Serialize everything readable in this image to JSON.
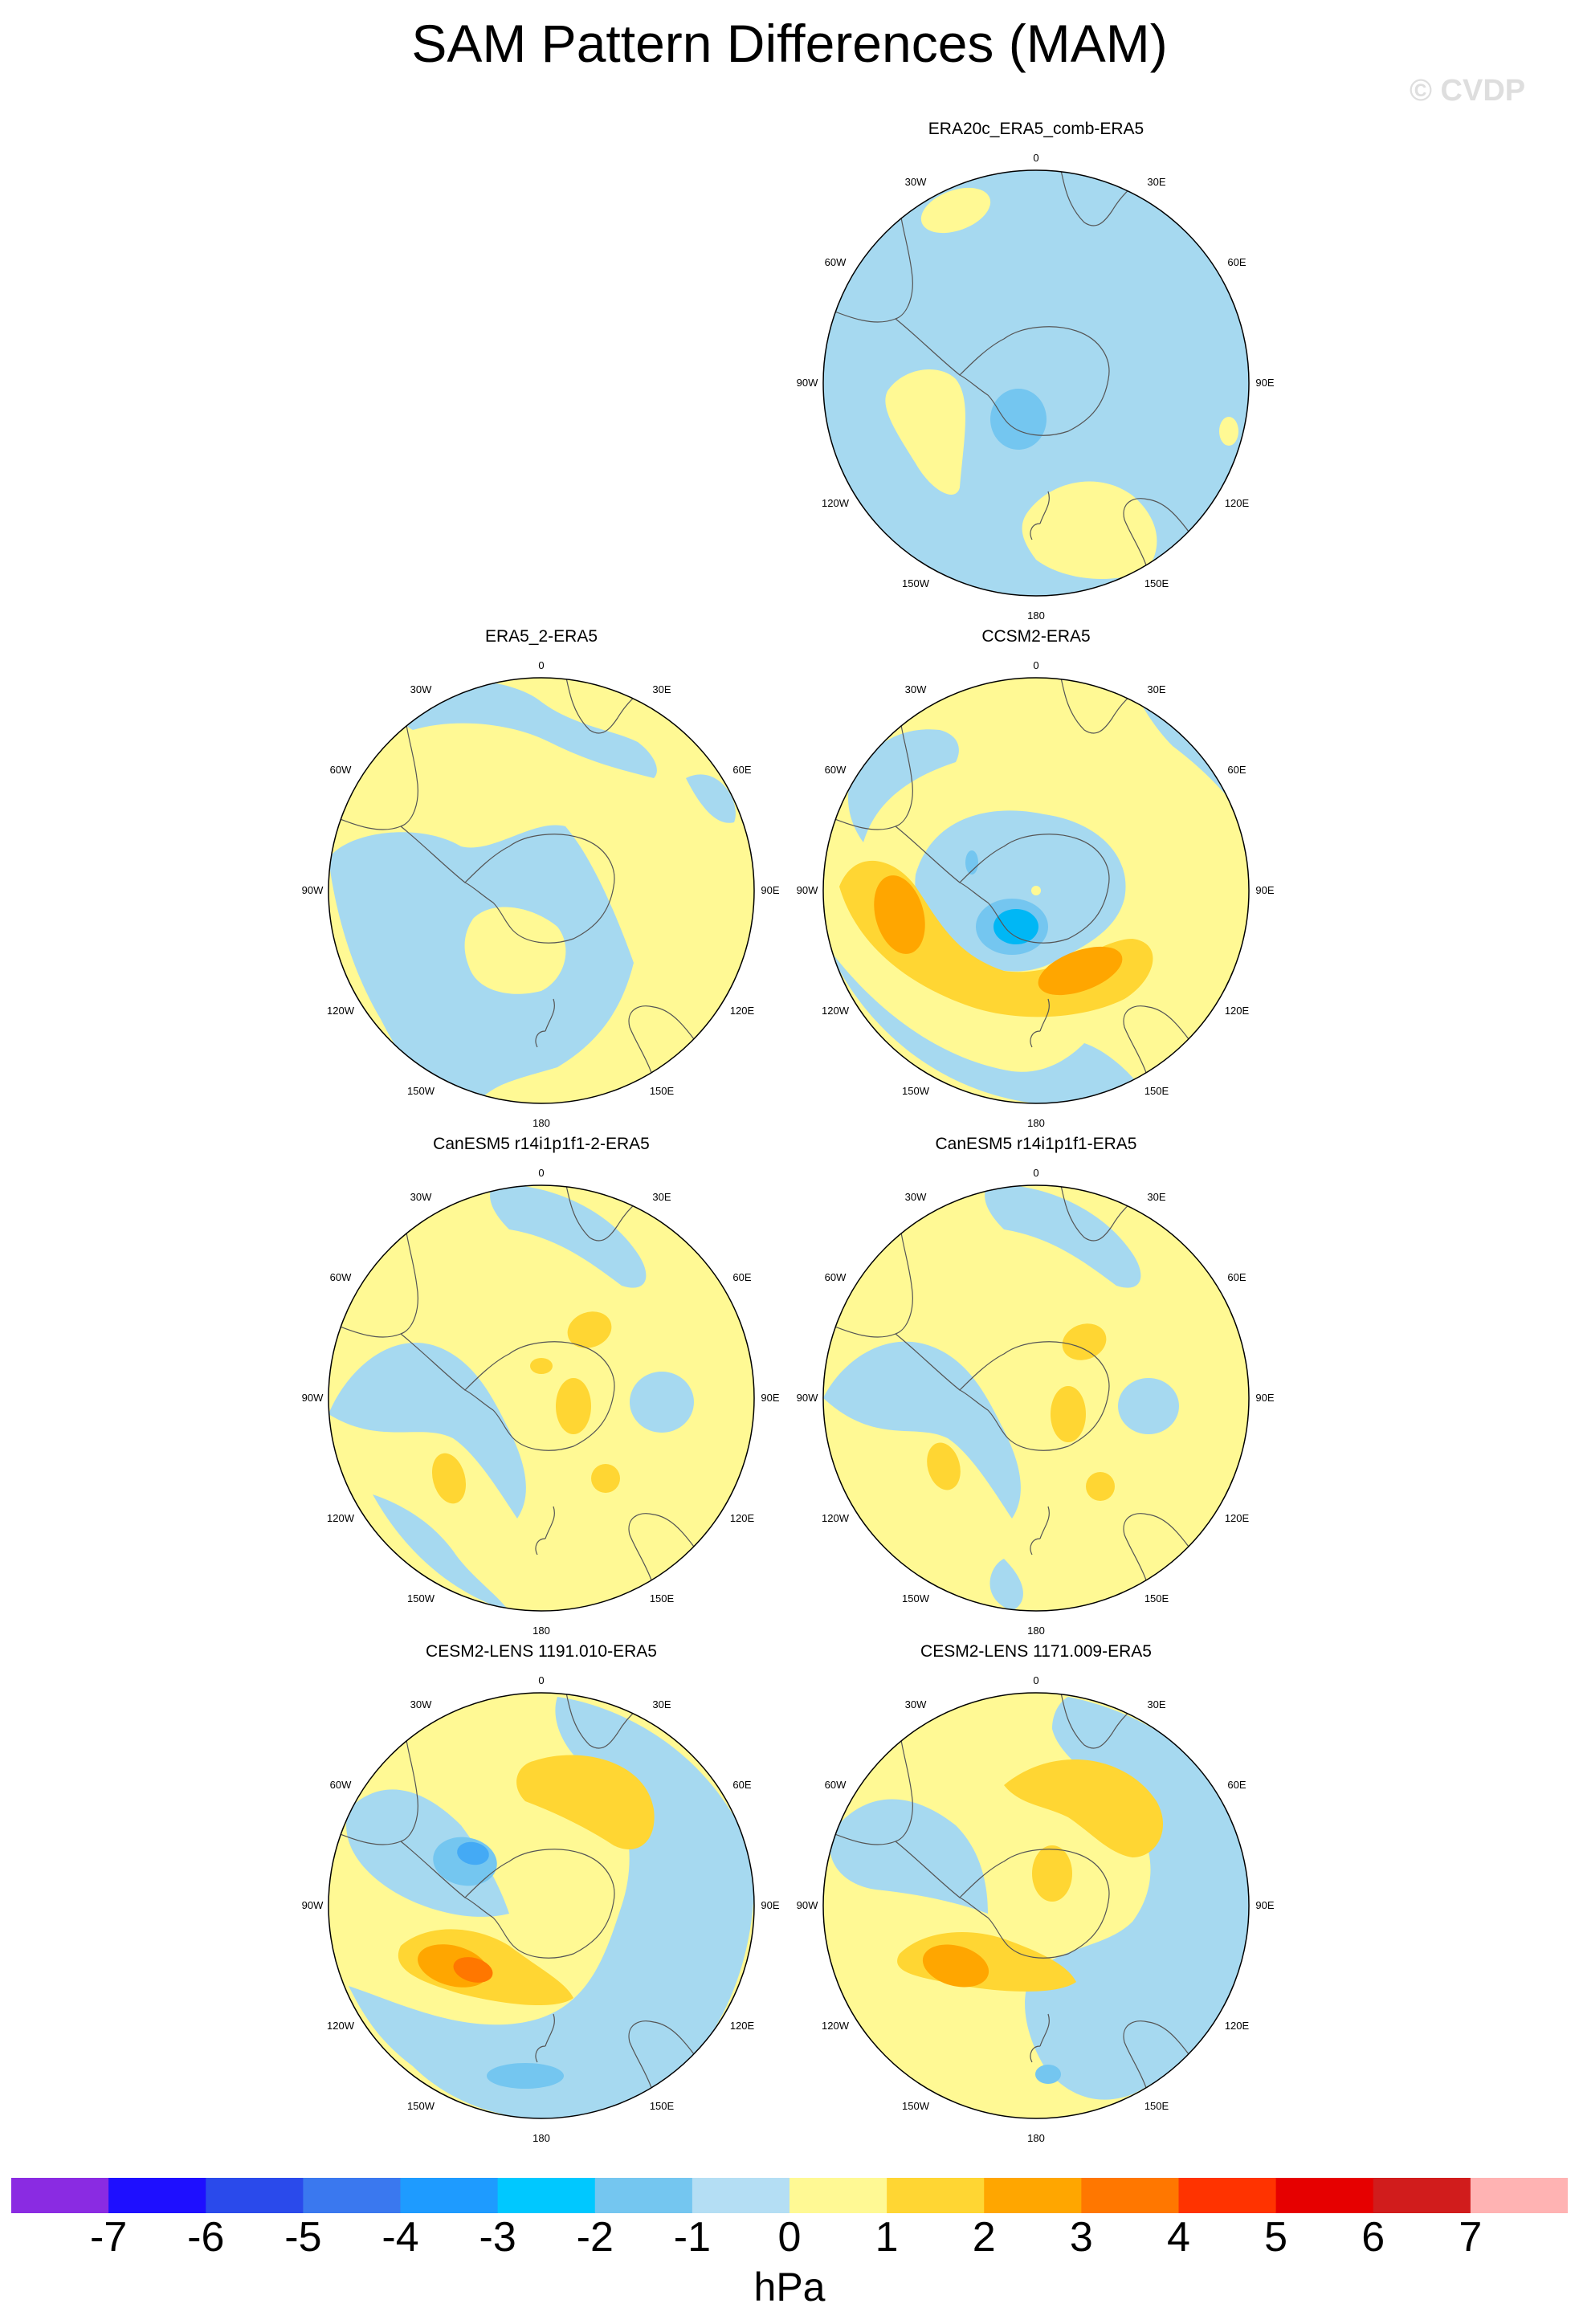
{
  "title": "SAM Pattern Differences (MAM)",
  "watermark": "© CVDP",
  "colors": {
    "land_outline": "#555555",
    "map_border": "#000000",
    "palette": [
      "#a6d9f0",
      "#fff994",
      "#ffd633",
      "#ffa600",
      "#ff7700",
      "#74c6f0",
      "#44aaf5",
      "#00b7f5"
    ]
  },
  "panels": [
    {
      "id": "era20c",
      "title": "ERA20c_ERA5_comb-ERA5",
      "lon_labels": {
        "0": "0",
        "30W": "30W",
        "30E": "30E",
        "60W": "60W",
        "60E": "60E",
        "90W": "90W",
        "90E": "90E",
        "120W": "120W",
        "120E": "120E",
        "150W": "150W",
        "150E": "150E",
        "180": "180"
      }
    },
    {
      "id": "era5-2",
      "title": "ERA5_2-ERA5",
      "lon_labels": {
        "0": "0",
        "30W": "30W",
        "30E": "30E",
        "60W": "60W",
        "60E": "60E",
        "90W": "90W",
        "90E": "90E",
        "120W": "120W",
        "120E": "120E",
        "150W": "150W",
        "150E": "150E",
        "180": "180"
      }
    },
    {
      "id": "ccsm2",
      "title": "CCSM2-ERA5",
      "lon_labels": {
        "0": "0",
        "30W": "30W",
        "30E": "30E",
        "60W": "60W",
        "60E": "60E",
        "90W": "90W",
        "90E": "90E",
        "120W": "120W",
        "120E": "120E",
        "150W": "150W",
        "150E": "150E",
        "180": "180"
      }
    },
    {
      "id": "canesm5-2",
      "title": "CanESM5 r14i1p1f1-2-ERA5",
      "lon_labels": {
        "0": "0",
        "30W": "30W",
        "30E": "30E",
        "60W": "60W",
        "60E": "60E",
        "90W": "90W",
        "90E": "90E",
        "120W": "120W",
        "120E": "120E",
        "150W": "150W",
        "150E": "150E",
        "180": "180"
      }
    },
    {
      "id": "canesm5",
      "title": "CanESM5 r14i1p1f1-ERA5",
      "lon_labels": {
        "0": "0",
        "30W": "30W",
        "30E": "30E",
        "60W": "60W",
        "60E": "60E",
        "90W": "90W",
        "90E": "90E",
        "120W": "120W",
        "120E": "120E",
        "150W": "150W",
        "150E": "150E",
        "180": "180"
      }
    },
    {
      "id": "cesm2-1191",
      "title": "CESM2-LENS 1191.010-ERA5",
      "lon_labels": {
        "0": "0",
        "30W": "30W",
        "30E": "30E",
        "60W": "60W",
        "60E": "60E",
        "90W": "90W",
        "90E": "90E",
        "120W": "120W",
        "120E": "120E",
        "150W": "150W",
        "150E": "150E",
        "180": "180"
      }
    },
    {
      "id": "cesm2-1171",
      "title": "CESM2-LENS 1171.009-ERA5",
      "lon_labels": {
        "0": "0",
        "30W": "30W",
        "30E": "30E",
        "60W": "60W",
        "60E": "60E",
        "90W": "90W",
        "90E": "90E",
        "120W": "120W",
        "120E": "120E",
        "150W": "150W",
        "150E": "150E",
        "180": "180"
      }
    }
  ],
  "colorbar": {
    "units": "hPa",
    "colors": [
      "#8a2be2",
      "#1e0fff",
      "#2a4aeb",
      "#3a78ef",
      "#1e9bff",
      "#00c8ff",
      "#74c6f0",
      "#b4def4",
      "#fff994",
      "#ffd633",
      "#ffa600",
      "#ff7700",
      "#ff3300",
      "#e60000",
      "#d11c1c",
      "#ffb3b3"
    ],
    "ticks": [
      "-7",
      "-6",
      "-5",
      "-4",
      "-3",
      "-2",
      "-1",
      "0",
      "1",
      "2",
      "3",
      "4",
      "5",
      "6",
      "7"
    ]
  }
}
